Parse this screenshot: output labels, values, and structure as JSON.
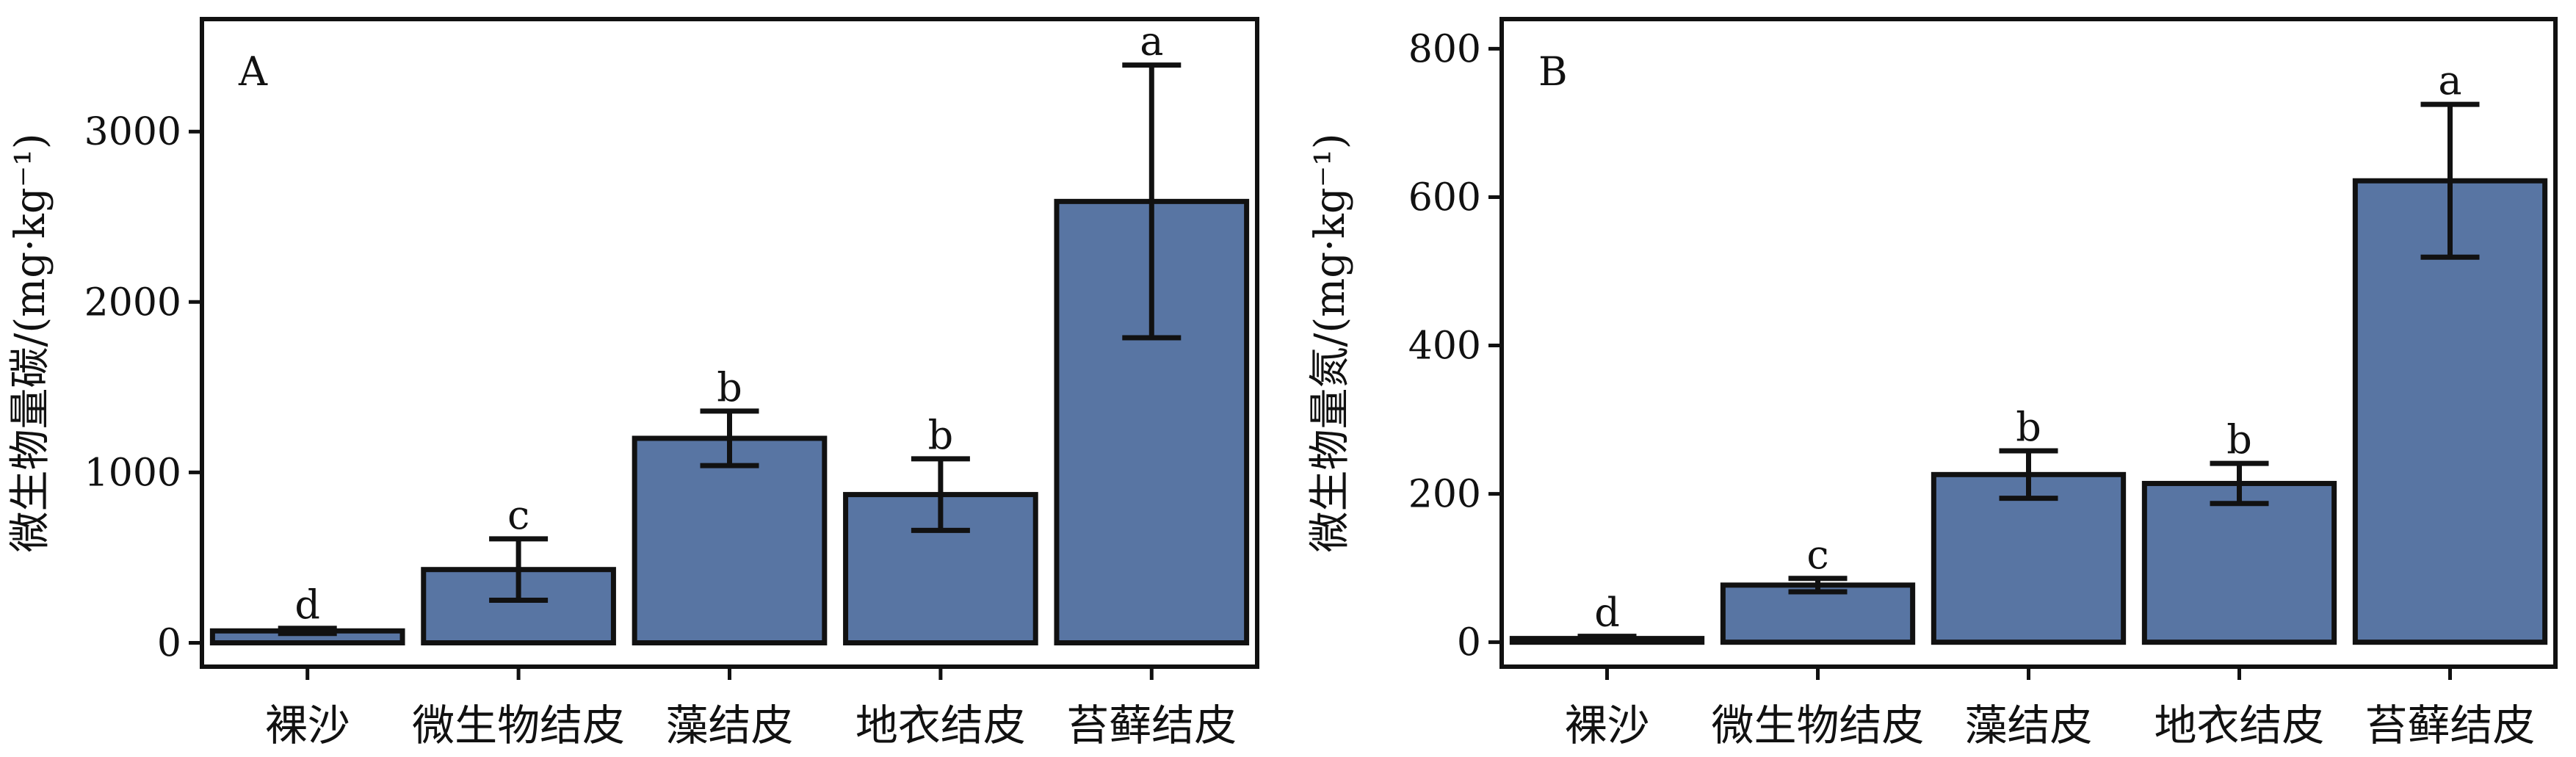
{
  "bar_color": "#5875a3",
  "edge_color": "#111111",
  "chart_data": [
    {
      "type": "bar",
      "panel_label": "A",
      "ylabel": "微生物量碳/(mg·kg⁻¹)",
      "categories": [
        "裸沙",
        "微生物结皮",
        "藻结皮",
        "地衣结皮",
        "苔藓结皮"
      ],
      "values": [
        70,
        430,
        1200,
        870,
        2590
      ],
      "error": [
        15,
        180,
        160,
        210,
        800
      ],
      "significance": [
        "d",
        "c",
        "b",
        "b",
        "a"
      ],
      "ylim": [
        -140,
        3660
      ],
      "yticks": [
        0,
        1000,
        2000,
        3000
      ],
      "grid": false
    },
    {
      "type": "bar",
      "panel_label": "B",
      "ylabel": "微生物量氮/(mg·kg⁻¹)",
      "categories": [
        "裸沙",
        "微生物结皮",
        "藻结皮",
        "地衣结皮",
        "苔藓结皮"
      ],
      "values": [
        5,
        77,
        226,
        214,
        622
      ],
      "error": [
        3,
        9,
        32,
        27,
        103
      ],
      "significance": [
        "d",
        "c",
        "b",
        "b",
        "a"
      ],
      "ylim": [
        -33,
        840
      ],
      "yticks": [
        0,
        200,
        400,
        600,
        800
      ],
      "grid": false
    }
  ]
}
